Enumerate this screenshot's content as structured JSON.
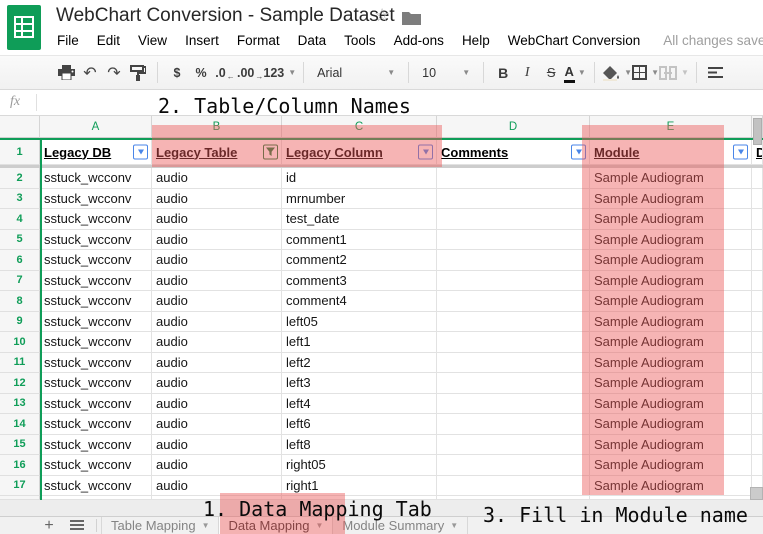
{
  "colors": {
    "brand_green": "#0f9d58",
    "filter_blue": "#4a86e8",
    "highlight_pink": "rgba(236,88,88,0.45)"
  },
  "header": {
    "title": "WebChart Conversion - Sample Dataset",
    "menu": [
      "File",
      "Edit",
      "View",
      "Insert",
      "Format",
      "Data",
      "Tools",
      "Add-ons",
      "Help",
      "WebChart Conversion"
    ],
    "save_status": "All changes saved in Dr"
  },
  "toolbar": {
    "currency": "$",
    "percent": "%",
    "decrease_decimal": ".0",
    "increase_decimal": ".00",
    "more_formats": "123",
    "font_family": "Arial",
    "font_size": "10",
    "bold": "B",
    "italic": "I",
    "strikethrough": "S",
    "text_color": "A"
  },
  "formula_bar": {
    "fx_label": "fx"
  },
  "grid": {
    "column_letters": [
      "A",
      "B",
      "C",
      "D",
      "E"
    ],
    "header_row_number": "1",
    "headers": [
      "Legacy DB",
      "Legacy Table",
      "Legacy Column",
      "Comments",
      "Module"
    ],
    "partial_header": "D",
    "rows": [
      {
        "number": "2",
        "legacy_db": "sstuck_wcconv",
        "legacy_table": "audio",
        "legacy_column": "id",
        "comments": "",
        "module": "Sample Audiogram"
      },
      {
        "number": "3",
        "legacy_db": "sstuck_wcconv",
        "legacy_table": "audio",
        "legacy_column": "mrnumber",
        "comments": "",
        "module": "Sample Audiogram"
      },
      {
        "number": "4",
        "legacy_db": "sstuck_wcconv",
        "legacy_table": "audio",
        "legacy_column": "test_date",
        "comments": "",
        "module": "Sample Audiogram"
      },
      {
        "number": "5",
        "legacy_db": "sstuck_wcconv",
        "legacy_table": "audio",
        "legacy_column": "comment1",
        "comments": "",
        "module": "Sample Audiogram"
      },
      {
        "number": "6",
        "legacy_db": "sstuck_wcconv",
        "legacy_table": "audio",
        "legacy_column": "comment2",
        "comments": "",
        "module": "Sample Audiogram"
      },
      {
        "number": "7",
        "legacy_db": "sstuck_wcconv",
        "legacy_table": "audio",
        "legacy_column": "comment3",
        "comments": "",
        "module": "Sample Audiogram"
      },
      {
        "number": "8",
        "legacy_db": "sstuck_wcconv",
        "legacy_table": "audio",
        "legacy_column": "comment4",
        "comments": "",
        "module": "Sample Audiogram"
      },
      {
        "number": "9",
        "legacy_db": "sstuck_wcconv",
        "legacy_table": "audio",
        "legacy_column": "left05",
        "comments": "",
        "module": "Sample Audiogram"
      },
      {
        "number": "10",
        "legacy_db": "sstuck_wcconv",
        "legacy_table": "audio",
        "legacy_column": "left1",
        "comments": "",
        "module": "Sample Audiogram"
      },
      {
        "number": "11",
        "legacy_db": "sstuck_wcconv",
        "legacy_table": "audio",
        "legacy_column": "left2",
        "comments": "",
        "module": "Sample Audiogram"
      },
      {
        "number": "12",
        "legacy_db": "sstuck_wcconv",
        "legacy_table": "audio",
        "legacy_column": "left3",
        "comments": "",
        "module": "Sample Audiogram"
      },
      {
        "number": "13",
        "legacy_db": "sstuck_wcconv",
        "legacy_table": "audio",
        "legacy_column": "left4",
        "comments": "",
        "module": "Sample Audiogram"
      },
      {
        "number": "14",
        "legacy_db": "sstuck_wcconv",
        "legacy_table": "audio",
        "legacy_column": "left6",
        "comments": "",
        "module": "Sample Audiogram"
      },
      {
        "number": "15",
        "legacy_db": "sstuck_wcconv",
        "legacy_table": "audio",
        "legacy_column": "left8",
        "comments": "",
        "module": "Sample Audiogram"
      },
      {
        "number": "16",
        "legacy_db": "sstuck_wcconv",
        "legacy_table": "audio",
        "legacy_column": "right05",
        "comments": "",
        "module": "Sample Audiogram"
      },
      {
        "number": "17",
        "legacy_db": "sstuck_wcconv",
        "legacy_table": "audio",
        "legacy_column": "right1",
        "comments": "",
        "module": "Sample Audiogram"
      }
    ]
  },
  "tabs": {
    "add_label": "+",
    "items": [
      {
        "label": "Table Mapping",
        "active": false
      },
      {
        "label": "Data Mapping",
        "active": true
      },
      {
        "label": "Module Summary",
        "active": false
      }
    ]
  },
  "annotations": {
    "step1": "1. Data Mapping Tab",
    "step2": "2. Table/Column Names",
    "step3": "3. Fill in Module name"
  }
}
